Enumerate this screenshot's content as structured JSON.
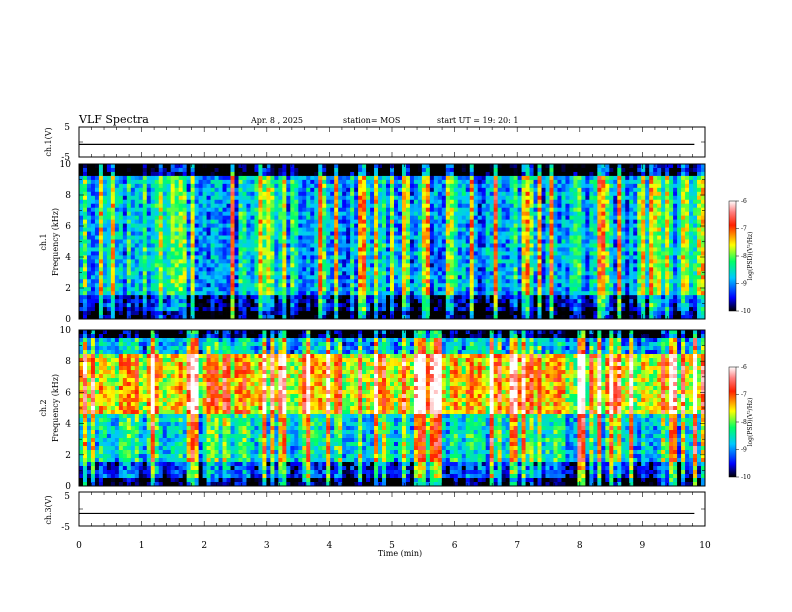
{
  "header": {
    "title": "VLF Spectra",
    "date": "Apr. 8 , 2025",
    "station": "station= MOS",
    "start": "start UT = 19: 20: 1"
  },
  "chart_data": [
    {
      "id": "ch1_waveform",
      "type": "line",
      "ylabel": "ch.1(V)",
      "ylim": [
        -5,
        5
      ],
      "yticks": [
        "5",
        "-5"
      ],
      "x_range_min": [
        0,
        9.83
      ],
      "series": [
        {
          "values": [
            -0.8,
            -0.8,
            -0.8,
            -0.8
          ]
        }
      ]
    },
    {
      "id": "ch1_spectrogram",
      "type": "heatmap",
      "ylabel_top": "ch.1",
      "ylabel": "Frequency (kHz)",
      "ylim": [
        0,
        10
      ],
      "yticks": [
        "0",
        "2",
        "4",
        "6",
        "8",
        "10"
      ],
      "colorbar": {
        "label": "log(PSD)(V²/Hz)",
        "ticks": [
          "-6",
          "-7",
          "-8",
          "-9",
          "-10"
        ],
        "range": [
          -10,
          -6
        ]
      }
    },
    {
      "id": "ch2_spectrogram",
      "type": "heatmap",
      "ylabel_top": "ch.2",
      "ylabel": "Frequency (kHz)",
      "ylim": [
        0,
        10
      ],
      "yticks": [
        "0",
        "2",
        "4",
        "6",
        "8",
        "10"
      ],
      "colorbar": {
        "label": "log(PSD)(V²/Hz)",
        "ticks": [
          "-6",
          "-7",
          "-8",
          "-9",
          "-10"
        ],
        "range": [
          -10,
          -6
        ]
      }
    },
    {
      "id": "ch3_waveform",
      "type": "line",
      "ylabel": "ch.3(V)",
      "ylim": [
        -5,
        5
      ],
      "yticks": [
        "5",
        "-5"
      ],
      "x_range_min": [
        0,
        9.83
      ],
      "series": [
        {
          "values": [
            -1.3,
            -1.3,
            -1.3,
            -1.3
          ]
        }
      ]
    }
  ],
  "x_axis": {
    "label": "Time (min)",
    "ticks": [
      "0",
      "1",
      "2",
      "3",
      "4",
      "5",
      "6",
      "7",
      "8",
      "9",
      "10"
    ],
    "range": [
      0,
      10
    ]
  }
}
